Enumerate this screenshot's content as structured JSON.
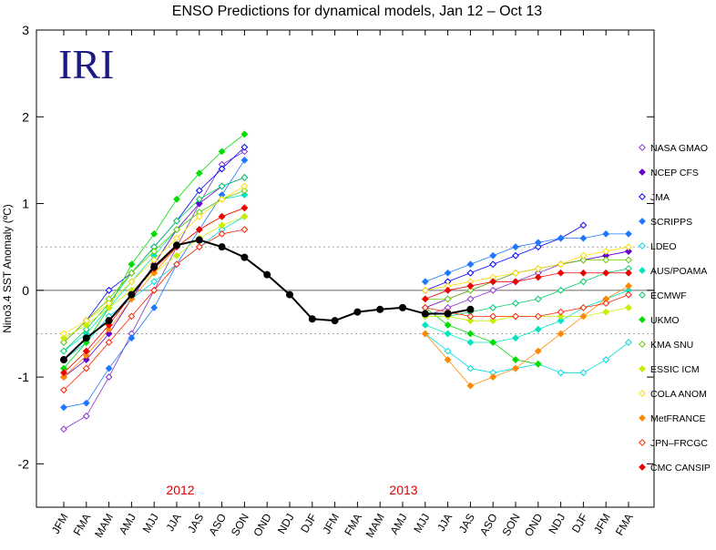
{
  "chart_data": {
    "type": "line",
    "title": "ENSO Predictions for dynamical models, Jan 12 – Oct 13",
    "logo": "IRI",
    "ylabel": "Nino3.4 SST Anomaly (ºC)",
    "annotations": [
      "2012",
      "2013"
    ],
    "categories": [
      "JFM",
      "FMA",
      "MAM",
      "AMJ",
      "MJJ",
      "JJA",
      "JAS",
      "ASO",
      "SON",
      "OND",
      "NDJ",
      "DJF",
      "JFM",
      "FMA",
      "MAM",
      "AMJ",
      "MJJ",
      "JJA",
      "JAS",
      "ASO",
      "SON",
      "OND",
      "NDJ",
      "DJF",
      "JFM",
      "FMA"
    ],
    "ylim": [
      -2.5,
      3
    ],
    "yticks": [
      -2,
      -1,
      0,
      1,
      2,
      3
    ],
    "zero_line": 0,
    "dashed_lines": [
      -0.5,
      0.5
    ],
    "observed": {
      "color": "#000000",
      "values": [
        -0.8,
        -0.55,
        -0.35,
        -0.05,
        0.27,
        0.52,
        0.58,
        0.5,
        0.38,
        0.18,
        -0.05,
        -0.33,
        -0.35,
        -0.25,
        -0.22,
        -0.2,
        -0.27,
        -0.27,
        -0.22,
        null,
        null,
        null,
        null,
        null,
        null,
        null
      ]
    },
    "series": [
      {
        "name": "NASA GMAO",
        "color": "#8833cc",
        "filled": false,
        "values": [
          [
            -1.6,
            -1.45,
            -1.0,
            -0.5,
            0.0,
            0.5,
            1.0,
            1.45,
            1.6,
            null,
            null,
            null,
            null,
            null,
            null,
            null,
            null,
            null,
            null,
            null,
            null,
            null,
            null,
            null,
            null,
            null
          ],
          [
            null,
            null,
            null,
            null,
            null,
            null,
            null,
            null,
            null,
            null,
            null,
            null,
            null,
            null,
            null,
            null,
            -0.3,
            -0.2,
            -0.1,
            0.0,
            0.1,
            0.2,
            0.3,
            0.35,
            0.4,
            0.45
          ]
        ]
      },
      {
        "name": "NCEP CFS",
        "color": "#6600cc",
        "filled": true,
        "values": [
          [
            -1.0,
            -0.8,
            -0.5,
            -0.1,
            0.3,
            0.7,
            1.0,
            1.2,
            1.3,
            null,
            null,
            null,
            null,
            null,
            null,
            null,
            null,
            null,
            null,
            null,
            null,
            null,
            null,
            null,
            null,
            null
          ],
          [
            null,
            null,
            null,
            null,
            null,
            null,
            null,
            null,
            null,
            null,
            null,
            null,
            null,
            null,
            null,
            null,
            -0.2,
            -0.1,
            0.0,
            0.1,
            0.2,
            0.25,
            0.3,
            0.35,
            0.4,
            0.45
          ]
        ]
      },
      {
        "name": "JMA",
        "color": "#0000ff",
        "filled": false,
        "values": [
          [
            -0.6,
            -0.35,
            0.0,
            0.2,
            0.5,
            0.8,
            1.15,
            1.4,
            1.65,
            null,
            null,
            null,
            null,
            null,
            null,
            null,
            null,
            null,
            null,
            null,
            null,
            null,
            null,
            null,
            null,
            null
          ],
          [
            null,
            null,
            null,
            null,
            null,
            null,
            null,
            null,
            null,
            null,
            null,
            null,
            null,
            null,
            null,
            null,
            0.0,
            0.1,
            0.2,
            0.3,
            0.4,
            0.5,
            0.6,
            0.75,
            null,
            null
          ]
        ]
      },
      {
        "name": "SCRIPPS",
        "color": "#1e78ff",
        "filled": true,
        "values": [
          [
            -1.35,
            -1.3,
            -0.9,
            -0.55,
            -0.2,
            0.3,
            0.7,
            1.1,
            1.5,
            null,
            null,
            null,
            null,
            null,
            null,
            null,
            null,
            null,
            null,
            null,
            null,
            null,
            null,
            null,
            null,
            null
          ],
          [
            null,
            null,
            null,
            null,
            null,
            null,
            null,
            null,
            null,
            null,
            null,
            null,
            null,
            null,
            null,
            null,
            0.1,
            0.2,
            0.3,
            0.4,
            0.5,
            0.55,
            0.6,
            0.6,
            0.65,
            0.65
          ]
        ]
      },
      {
        "name": "LDEO",
        "color": "#00d8e0",
        "filled": false,
        "values": [
          [
            -0.8,
            -0.6,
            -0.3,
            -0.1,
            0.1,
            0.3,
            0.5,
            0.7,
            0.85,
            null,
            null,
            null,
            null,
            null,
            null,
            null,
            null,
            null,
            null,
            null,
            null,
            null,
            null,
            null,
            null,
            null
          ],
          [
            null,
            null,
            null,
            null,
            null,
            null,
            null,
            null,
            null,
            null,
            null,
            null,
            null,
            null,
            null,
            null,
            -0.5,
            -0.7,
            -0.9,
            -0.95,
            -0.9,
            -0.85,
            -0.95,
            -0.95,
            -0.8,
            -0.6
          ]
        ]
      },
      {
        "name": "AUS/POAMA",
        "color": "#00e5c0",
        "filled": true,
        "values": [
          [
            -0.7,
            -0.5,
            -0.2,
            0.1,
            0.4,
            0.7,
            0.9,
            1.05,
            1.1,
            null,
            null,
            null,
            null,
            null,
            null,
            null,
            null,
            null,
            null,
            null,
            null,
            null,
            null,
            null,
            null,
            null
          ],
          [
            null,
            null,
            null,
            null,
            null,
            null,
            null,
            null,
            null,
            null,
            null,
            null,
            null,
            null,
            null,
            null,
            -0.4,
            -0.5,
            -0.6,
            -0.6,
            -0.55,
            -0.45,
            -0.35,
            -0.2,
            -0.1,
            0.0
          ]
        ]
      },
      {
        "name": "ECMWF",
        "color": "#00cc66",
        "filled": false,
        "values": [
          [
            -0.7,
            -0.45,
            -0.15,
            0.2,
            0.5,
            0.8,
            1.05,
            1.2,
            1.3,
            null,
            null,
            null,
            null,
            null,
            null,
            null,
            null,
            null,
            null,
            null,
            null,
            null,
            null,
            null,
            null,
            null
          ],
          [
            null,
            null,
            null,
            null,
            null,
            null,
            null,
            null,
            null,
            null,
            null,
            null,
            null,
            null,
            null,
            null,
            -0.3,
            -0.3,
            -0.25,
            -0.2,
            -0.15,
            -0.1,
            0.0,
            0.1,
            0.2,
            0.25
          ]
        ]
      },
      {
        "name": "UKMO",
        "color": "#00dd00",
        "filled": true,
        "values": [
          [
            -0.9,
            -0.6,
            -0.2,
            0.3,
            0.65,
            1.05,
            1.35,
            1.6,
            1.8,
            null,
            null,
            null,
            null,
            null,
            null,
            null,
            null,
            null,
            null,
            null,
            null,
            null,
            null,
            null,
            null,
            null
          ],
          [
            null,
            null,
            null,
            null,
            null,
            null,
            null,
            null,
            null,
            null,
            null,
            null,
            null,
            null,
            null,
            null,
            -0.2,
            -0.4,
            -0.5,
            -0.6,
            -0.8,
            -0.85,
            null,
            null,
            null,
            null
          ]
        ]
      },
      {
        "name": "KMA SNU",
        "color": "#66cc00",
        "filled": false,
        "values": [
          [
            -0.6,
            -0.35,
            -0.1,
            0.2,
            0.45,
            0.7,
            0.9,
            1.05,
            1.15,
            null,
            null,
            null,
            null,
            null,
            null,
            null,
            null,
            null,
            null,
            null,
            null,
            null,
            null,
            null,
            null,
            null
          ],
          [
            null,
            null,
            null,
            null,
            null,
            null,
            null,
            null,
            null,
            null,
            null,
            null,
            null,
            null,
            null,
            null,
            -0.1,
            -0.1,
            0.0,
            0.1,
            0.2,
            0.25,
            0.3,
            0.35,
            0.35,
            0.35
          ]
        ]
      },
      {
        "name": "ESSIC ICM",
        "color": "#c8ee00",
        "filled": true,
        "values": [
          [
            -0.55,
            -0.4,
            -0.2,
            0.0,
            0.2,
            0.4,
            0.6,
            0.75,
            0.85,
            null,
            null,
            null,
            null,
            null,
            null,
            null,
            null,
            null,
            null,
            null,
            null,
            null,
            null,
            null,
            null,
            null
          ],
          [
            null,
            null,
            null,
            null,
            null,
            null,
            null,
            null,
            null,
            null,
            null,
            null,
            null,
            null,
            null,
            null,
            -0.3,
            -0.3,
            -0.35,
            -0.35,
            -0.3,
            -0.3,
            -0.3,
            -0.3,
            -0.25,
            -0.2
          ]
        ]
      },
      {
        "name": "COLA ANOM",
        "color": "#ffdd00",
        "filled": false,
        "values": [
          [
            -0.5,
            -0.35,
            -0.15,
            0.1,
            0.35,
            0.6,
            0.85,
            1.05,
            1.2,
            null,
            null,
            null,
            null,
            null,
            null,
            null,
            null,
            null,
            null,
            null,
            null,
            null,
            null,
            null,
            null,
            null
          ],
          [
            null,
            null,
            null,
            null,
            null,
            null,
            null,
            null,
            null,
            null,
            null,
            null,
            null,
            null,
            null,
            null,
            0.0,
            0.05,
            0.1,
            0.15,
            0.2,
            0.25,
            0.3,
            0.4,
            0.45,
            0.5
          ]
        ]
      },
      {
        "name": "MetFRANCE",
        "color": "#ff8800",
        "filled": true,
        "values": [
          [
            -1.0,
            -0.75,
            -0.45,
            -0.1,
            0.2,
            0.5,
            0.7,
            0.85,
            0.95,
            null,
            null,
            null,
            null,
            null,
            null,
            null,
            null,
            null,
            null,
            null,
            null,
            null,
            null,
            null,
            null,
            null
          ],
          [
            null,
            null,
            null,
            null,
            null,
            null,
            null,
            null,
            null,
            null,
            null,
            null,
            null,
            null,
            null,
            null,
            -0.5,
            -0.8,
            -1.1,
            -1.0,
            -0.9,
            -0.7,
            -0.5,
            -0.3,
            -0.1,
            0.05
          ]
        ]
      },
      {
        "name": "JPN–FRCGC",
        "color": "#ff2200",
        "filled": false,
        "values": [
          [
            -1.15,
            -0.9,
            -0.6,
            -0.3,
            0.0,
            0.3,
            0.5,
            0.65,
            0.7,
            null,
            null,
            null,
            null,
            null,
            null,
            null,
            null,
            null,
            null,
            null,
            null,
            null,
            null,
            null,
            null,
            null
          ],
          [
            null,
            null,
            null,
            null,
            null,
            null,
            null,
            null,
            null,
            null,
            null,
            null,
            null,
            null,
            null,
            null,
            -0.2,
            -0.25,
            -0.3,
            -0.3,
            -0.3,
            -0.3,
            -0.25,
            -0.2,
            -0.15,
            -0.05
          ]
        ]
      },
      {
        "name": "CMC CANSIP",
        "color": "#ee0000",
        "filled": true,
        "values": [
          [
            -0.95,
            -0.7,
            -0.4,
            -0.05,
            0.25,
            0.5,
            0.7,
            0.85,
            0.95,
            null,
            null,
            null,
            null,
            null,
            null,
            null,
            null,
            null,
            null,
            null,
            null,
            null,
            null,
            null,
            null,
            null
          ],
          [
            null,
            null,
            null,
            null,
            null,
            null,
            null,
            null,
            null,
            null,
            null,
            null,
            null,
            null,
            null,
            null,
            -0.1,
            0.0,
            0.05,
            0.1,
            0.1,
            0.15,
            0.2,
            0.2,
            0.2,
            0.2
          ]
        ]
      }
    ]
  }
}
